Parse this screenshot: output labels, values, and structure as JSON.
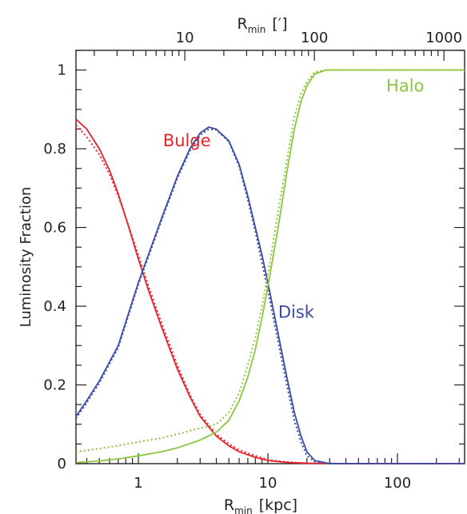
{
  "chart_data": {
    "type": "line",
    "xscale": "log",
    "xlim": [
      0.33,
      330
    ],
    "ylim": [
      0,
      1.05
    ],
    "xlabel_main": "R",
    "xlabel_sub": "min",
    "xlabel_unit": "[kpc]",
    "top_axis_main": "R",
    "top_axis_sub": "min",
    "top_axis_unit": "[′]",
    "ylabel": "Luminosity Fraction",
    "x_ticks": [
      {
        "value": 1,
        "label": "1"
      },
      {
        "value": 10,
        "label": "10"
      },
      {
        "value": 100,
        "label": "100"
      }
    ],
    "top_ticks": [
      {
        "value": 10,
        "label": "10"
      },
      {
        "value": 100,
        "label": "100"
      },
      {
        "value": 1000,
        "label": "1000"
      }
    ],
    "top_scale_factor": 0.2285,
    "y_ticks": [
      {
        "value": 0,
        "label": "0"
      },
      {
        "value": 0.2,
        "label": "0.2"
      },
      {
        "value": 0.4,
        "label": "0.4"
      },
      {
        "value": 0.6,
        "label": "0.6"
      },
      {
        "value": 0.8,
        "label": "0.8"
      },
      {
        "value": 1,
        "label": "1"
      }
    ],
    "series": [
      {
        "name": "Bulge",
        "color": "#e8232b",
        "label_x": 1.55,
        "label_y": 0.82,
        "solid": [
          [
            0.33,
            0.875
          ],
          [
            0.4,
            0.85
          ],
          [
            0.5,
            0.8
          ],
          [
            0.6,
            0.745
          ],
          [
            0.7,
            0.685
          ],
          [
            0.8,
            0.625
          ],
          [
            0.9,
            0.57
          ],
          [
            1.0,
            0.52
          ],
          [
            1.2,
            0.44
          ],
          [
            1.5,
            0.35
          ],
          [
            2.0,
            0.24
          ],
          [
            2.5,
            0.17
          ],
          [
            3.0,
            0.12
          ],
          [
            4.0,
            0.07
          ],
          [
            5.0,
            0.045
          ],
          [
            6.0,
            0.03
          ],
          [
            8.0,
            0.016
          ],
          [
            10,
            0.008
          ],
          [
            14,
            0.003
          ],
          [
            20,
            0.001
          ],
          [
            40,
            0
          ],
          [
            100,
            0
          ],
          [
            330,
            0
          ]
        ],
        "dotted": [
          [
            0.33,
            0.86
          ],
          [
            0.4,
            0.83
          ],
          [
            0.5,
            0.785
          ],
          [
            0.6,
            0.735
          ],
          [
            0.7,
            0.68
          ],
          [
            0.8,
            0.625
          ],
          [
            0.9,
            0.575
          ],
          [
            1.0,
            0.53
          ],
          [
            1.2,
            0.45
          ],
          [
            1.5,
            0.36
          ],
          [
            2.0,
            0.25
          ],
          [
            2.5,
            0.175
          ],
          [
            3.0,
            0.125
          ],
          [
            4.0,
            0.075
          ],
          [
            5.0,
            0.05
          ],
          [
            6.0,
            0.035
          ],
          [
            8.0,
            0.02
          ],
          [
            10,
            0.01
          ],
          [
            14,
            0.004
          ],
          [
            20,
            0.001
          ],
          [
            40,
            0
          ],
          [
            100,
            0
          ],
          [
            330,
            0
          ]
        ]
      },
      {
        "name": "Disk",
        "color": "#3a4ba6",
        "label_x": 12,
        "label_y": 0.385,
        "solid": [
          [
            0.33,
            0.12
          ],
          [
            0.4,
            0.16
          ],
          [
            0.5,
            0.21
          ],
          [
            0.7,
            0.3
          ],
          [
            1.0,
            0.46
          ],
          [
            1.5,
            0.62
          ],
          [
            2.0,
            0.73
          ],
          [
            2.5,
            0.8
          ],
          [
            3.0,
            0.84
          ],
          [
            3.5,
            0.855
          ],
          [
            4.0,
            0.85
          ],
          [
            5.0,
            0.82
          ],
          [
            6.0,
            0.76
          ],
          [
            7.0,
            0.68
          ],
          [
            8.0,
            0.6
          ],
          [
            9.0,
            0.53
          ],
          [
            10,
            0.46
          ],
          [
            12,
            0.33
          ],
          [
            14,
            0.22
          ],
          [
            16,
            0.13
          ],
          [
            18,
            0.07
          ],
          [
            20,
            0.03
          ],
          [
            23,
            0.008
          ],
          [
            30,
            0
          ],
          [
            100,
            0
          ],
          [
            330,
            0
          ]
        ],
        "dotted": [
          [
            0.33,
            0.115
          ],
          [
            0.4,
            0.155
          ],
          [
            0.5,
            0.205
          ],
          [
            0.7,
            0.295
          ],
          [
            1.0,
            0.455
          ],
          [
            1.5,
            0.615
          ],
          [
            2.0,
            0.725
          ],
          [
            2.5,
            0.795
          ],
          [
            3.0,
            0.835
          ],
          [
            3.5,
            0.85
          ],
          [
            4.0,
            0.848
          ],
          [
            5.0,
            0.818
          ],
          [
            6.0,
            0.755
          ],
          [
            7.0,
            0.67
          ],
          [
            8.0,
            0.59
          ],
          [
            9.0,
            0.51
          ],
          [
            10,
            0.44
          ],
          [
            12,
            0.31
          ],
          [
            14,
            0.2
          ],
          [
            16,
            0.11
          ],
          [
            18,
            0.055
          ],
          [
            20,
            0.02
          ],
          [
            23,
            0.005
          ],
          [
            30,
            0
          ],
          [
            100,
            0
          ],
          [
            330,
            0
          ]
        ]
      },
      {
        "name": "Halo",
        "color": "#8cc63f",
        "label_x": 82,
        "label_y": 0.96,
        "solid": [
          [
            0.33,
            0.003
          ],
          [
            0.5,
            0.007
          ],
          [
            0.7,
            0.012
          ],
          [
            1.0,
            0.02
          ],
          [
            1.5,
            0.03
          ],
          [
            2.0,
            0.04
          ],
          [
            3.0,
            0.06
          ],
          [
            4.0,
            0.08
          ],
          [
            5.0,
            0.11
          ],
          [
            6.0,
            0.16
          ],
          [
            7.0,
            0.22
          ],
          [
            8.0,
            0.29
          ],
          [
            9.0,
            0.37
          ],
          [
            10,
            0.45
          ],
          [
            12,
            0.6
          ],
          [
            14,
            0.74
          ],
          [
            16,
            0.85
          ],
          [
            18,
            0.92
          ],
          [
            20,
            0.96
          ],
          [
            23,
            0.99
          ],
          [
            28,
            1.0
          ],
          [
            50,
            1.0
          ],
          [
            100,
            1.0
          ],
          [
            330,
            1.0
          ]
        ],
        "dotted": [
          [
            0.33,
            0.03
          ],
          [
            0.5,
            0.038
          ],
          [
            0.7,
            0.046
          ],
          [
            1.0,
            0.055
          ],
          [
            1.5,
            0.065
          ],
          [
            2.0,
            0.075
          ],
          [
            3.0,
            0.09
          ],
          [
            4.0,
            0.1
          ],
          [
            5.0,
            0.13
          ],
          [
            6.0,
            0.18
          ],
          [
            7.0,
            0.25
          ],
          [
            8.0,
            0.32
          ],
          [
            9.0,
            0.4
          ],
          [
            10,
            0.48
          ],
          [
            12,
            0.64
          ],
          [
            14,
            0.77
          ],
          [
            16,
            0.88
          ],
          [
            18,
            0.94
          ],
          [
            20,
            0.97
          ],
          [
            23,
            0.995
          ],
          [
            28,
            1.0
          ],
          [
            50,
            1.0
          ],
          [
            100,
            1.0
          ],
          [
            330,
            1.0
          ]
        ]
      }
    ]
  }
}
